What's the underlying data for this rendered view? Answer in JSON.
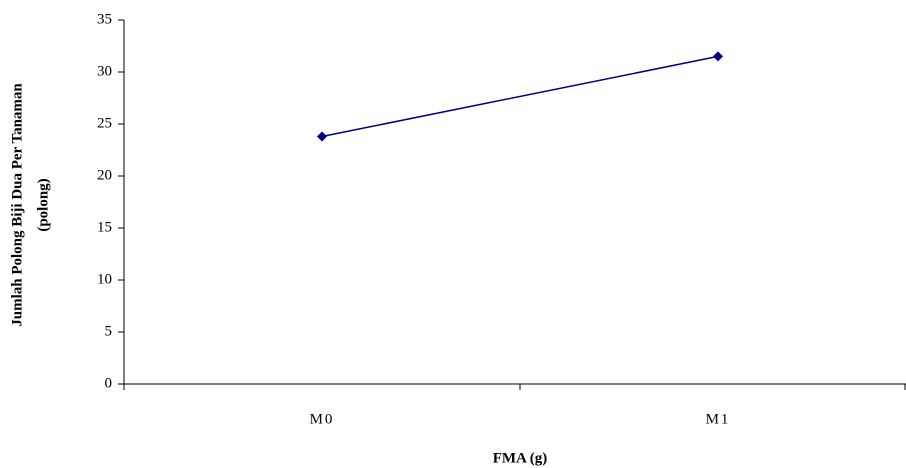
{
  "chart_data": {
    "type": "line",
    "x_label": "FMA (g)",
    "y_label": [
      "Jumlah Polong Biji Dua Per Tanaman",
      "(polong)"
    ],
    "categories": [
      "M0",
      "M1"
    ],
    "values": [
      23.8,
      31.5
    ],
    "color": "#000080",
    "ylim": [
      0,
      35
    ],
    "yticks": [
      0,
      5,
      10,
      15,
      20,
      25,
      30,
      35
    ],
    "grid": false
  }
}
